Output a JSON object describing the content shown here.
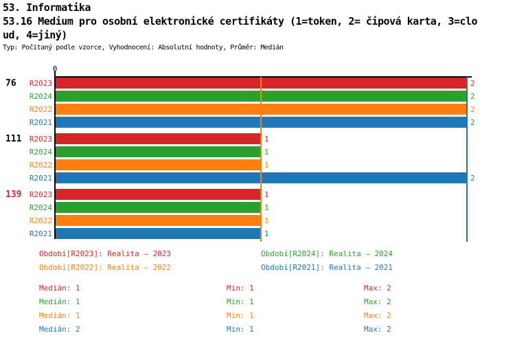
{
  "header": {
    "line1": "53. Informatika",
    "line2": "53.16 Medium pro osobní elektronické certifikáty (1=token, 2= čipová karta, 3=clo",
    "line3": "ud, 4=jiný)",
    "meta": "Typ: Počítaný podle vzorce, Vyhodnocení: Absolutní hodnoty, Průměr: Medián"
  },
  "colors": {
    "R2023": "#d62728",
    "R2024": "#2ca02c",
    "R2022": "#ff7f0e",
    "R2021": "#1f77b4",
    "axis": "#000000",
    "group_label_default": "#000000",
    "group_label_alert": "#d62728"
  },
  "chart_data": {
    "type": "bar",
    "orientation": "horizontal",
    "title": "53.16 Medium pro osobní elektronické certifikáty (1=token, 2= čipová karta, 3=cloud, 4=jiný)",
    "x_axis": {
      "tick_labels": [
        "0"
      ],
      "min": 0,
      "implied_max": 2,
      "grid": false
    },
    "series_order": [
      "R2023",
      "R2024",
      "R2022",
      "R2021"
    ],
    "groups": [
      {
        "label": "76",
        "label_color": "#000000",
        "bars": [
          {
            "series": "R2023",
            "value": 2
          },
          {
            "series": "R2024",
            "value": 2
          },
          {
            "series": "R2022",
            "value": 2
          },
          {
            "series": "R2021",
            "value": 2
          }
        ]
      },
      {
        "label": "111",
        "label_color": "#000000",
        "bars": [
          {
            "series": "R2023",
            "value": 1
          },
          {
            "series": "R2024",
            "value": 1
          },
          {
            "series": "R2022",
            "value": 1
          },
          {
            "series": "R2021",
            "value": 2
          }
        ]
      },
      {
        "label": "139",
        "label_color": "#d62728",
        "bars": [
          {
            "series": "R2023",
            "value": 1
          },
          {
            "series": "R2024",
            "value": 1
          },
          {
            "series": "R2022",
            "value": 1
          },
          {
            "series": "R2021",
            "value": 1
          }
        ]
      }
    ],
    "marker_lines": [
      {
        "series": "R2022",
        "value": 1,
        "color": "#ff7f0e"
      },
      {
        "series": "R2021",
        "value": 2,
        "color": "#1f77b4"
      }
    ],
    "legend_position": "bottom"
  },
  "legend": [
    {
      "series": "R2023",
      "text": "Období[R2023]: Realita – 2023"
    },
    {
      "series": "R2024",
      "text": "Období[R2024]: Realita – 2024"
    },
    {
      "series": "R2022",
      "text": "Období[R2022]: Realita – 2022"
    },
    {
      "series": "R2021",
      "text": "Období[R2021]: Realita – 2021"
    }
  ],
  "stats": {
    "labels": {
      "median": "Medián",
      "min": "Min",
      "max": "Max"
    },
    "rows": [
      {
        "series": "R2023",
        "median": 1,
        "min": 1,
        "max": 2
      },
      {
        "series": "R2024",
        "median": 1,
        "min": 1,
        "max": 2
      },
      {
        "series": "R2022",
        "median": 1,
        "min": 1,
        "max": 2
      },
      {
        "series": "R2021",
        "median": 2,
        "min": 1,
        "max": 2
      }
    ]
  }
}
